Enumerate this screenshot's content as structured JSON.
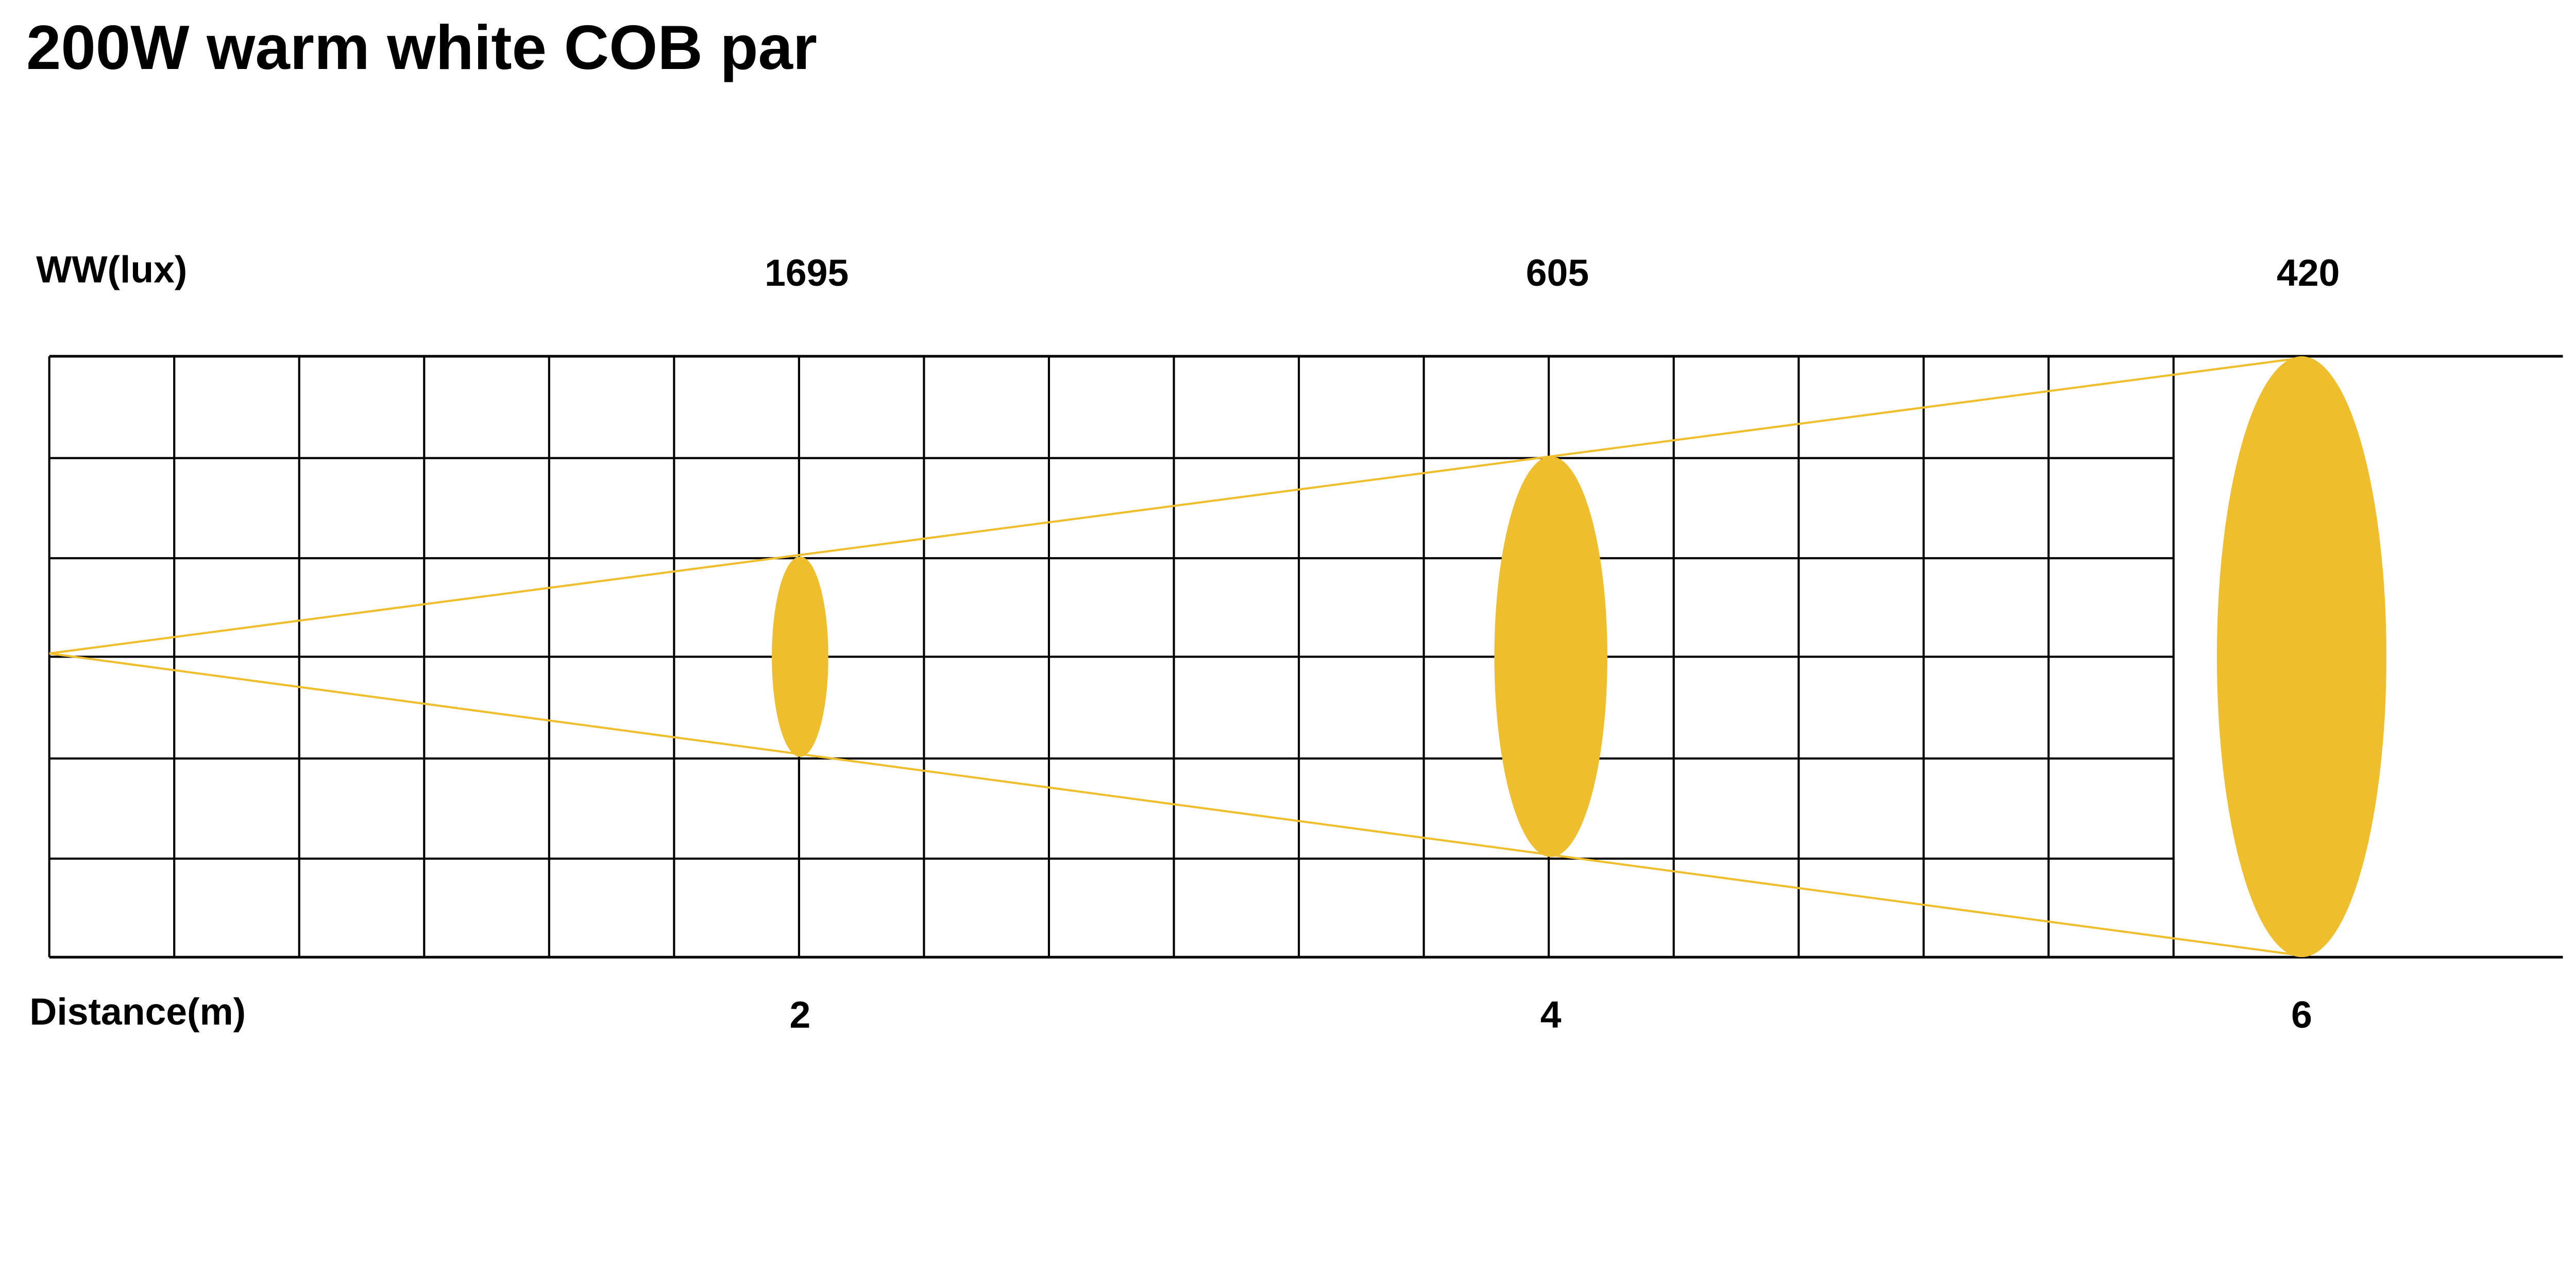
{
  "chart_data": {
    "type": "scatter",
    "title": "200W warm white COB par",
    "ylabel": "WW(lux)",
    "xlabel": "Distance(m)",
    "x": [
      2,
      4,
      6
    ],
    "values": [
      1695,
      605,
      420
    ],
    "x_tick_labels": [
      "2",
      "4",
      "6"
    ],
    "value_labels": [
      "1695",
      "605",
      "420"
    ],
    "xlim": [
      0,
      6.7
    ],
    "grid": true,
    "beam_color": "#EEBE2E",
    "grid_color": "#000000"
  }
}
